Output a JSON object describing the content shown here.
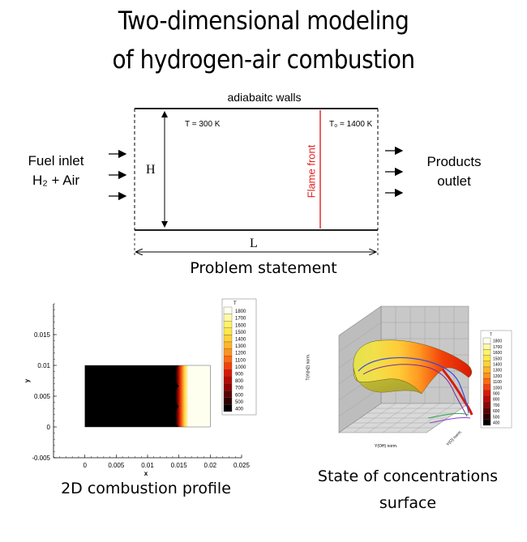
{
  "title": {
    "line1": "Two-dimensional modeling",
    "line2": "of hydrogen-air combustion"
  },
  "problem": {
    "walls_label": "adiabaitc walls",
    "inlet_line1": "Fuel inlet",
    "inlet_line2": "H₂ + Air",
    "outlet_line1": "Products",
    "outlet_line2": "outlet",
    "h_label": "H",
    "l_label": "L",
    "t_left": "T = 300 K",
    "t_right": "T₀ = 1400 K",
    "flame_front": "Flame front",
    "caption": "Problem statement",
    "colors": {
      "flame": "#e0201e",
      "wall": "#000000"
    }
  },
  "profile": {
    "caption": "2D combustion profile",
    "legend_title": "T",
    "legend_levels": [
      "1800",
      "1700",
      "1600",
      "1500",
      "1400",
      "1300",
      "1200",
      "1100",
      "1000",
      "900",
      "800",
      "700",
      "600",
      "500",
      "400"
    ],
    "legend_colors": [
      "#fffff0",
      "#fff9a8",
      "#fff36a",
      "#ffe84a",
      "#ffd23a",
      "#ffb52a",
      "#ff931e",
      "#ff6a12",
      "#f2420a",
      "#d81a06",
      "#b80a04",
      "#8c0402",
      "#5c0200",
      "#300000",
      "#000000"
    ]
  },
  "surface": {
    "caption_line1": "State of concentrations",
    "caption_line2": "surface",
    "legend_title": "T",
    "legend_levels": [
      "1800",
      "1700",
      "1600",
      "1500",
      "1400",
      "1300",
      "1200",
      "1100",
      "1000",
      "900",
      "800",
      "700",
      "600",
      "500",
      "400"
    ],
    "legend_colors": [
      "#fffff0",
      "#fff9a8",
      "#fff36a",
      "#ffe84a",
      "#ffd23a",
      "#ffb52a",
      "#ff931e",
      "#ff6a12",
      "#f2420a",
      "#d81a06",
      "#b80a04",
      "#8c0402",
      "#5c0200",
      "#300000",
      "#000000"
    ],
    "axis_labels": {
      "z": "T(Yi(H2) norm.",
      "x": "Y(OH) norm.",
      "y": "Y(O) norm."
    }
  },
  "chart_data": {
    "type": "heatmap",
    "xlabel": "x",
    "ylabel": "y",
    "xlim": [
      -0.005,
      0.025
    ],
    "ylim": [
      -0.005,
      0.02
    ],
    "x_ticks": [
      "0",
      "0.005",
      "0.01",
      "0.015",
      "0.02",
      "0.025"
    ],
    "y_ticks": [
      "-0.005",
      "0",
      "0.005",
      "0.01",
      "0.015"
    ],
    "domain": {
      "x": [
        0,
        0.02
      ],
      "y": [
        0,
        0.01
      ]
    },
    "burnt_region_start_x": 0.015,
    "colorbar_label": "T"
  }
}
